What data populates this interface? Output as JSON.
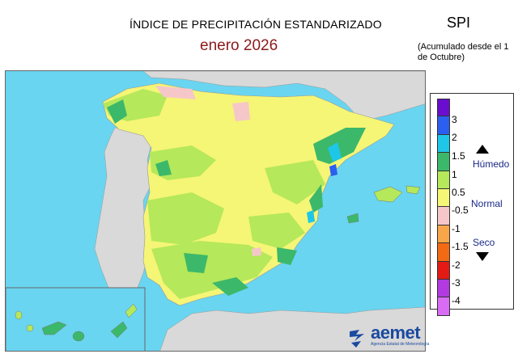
{
  "header": {
    "title": "ÍNDICE DE PRECIPITACIÓN ESTANDARIZADO",
    "period": "enero  2026",
    "index_name": "SPI",
    "note": "(Acumulado desde el 1 de Octubre)"
  },
  "legend": {
    "ticks": [
      "3",
      "2",
      "1.5",
      "1",
      "0.5",
      "-0.5",
      "-1",
      "-1.5",
      "-2",
      "-3",
      "-4"
    ],
    "bands": [
      {
        "color": "#6a0dcf"
      },
      {
        "color": "#2b5ff0"
      },
      {
        "color": "#1ec6e8"
      },
      {
        "color": "#3cb86a"
      },
      {
        "color": "#b5e85a"
      },
      {
        "color": "#f5f576"
      },
      {
        "color": "#f6c7c9"
      },
      {
        "color": "#f7a64a"
      },
      {
        "color": "#f26a13"
      },
      {
        "color": "#e31b14"
      },
      {
        "color": "#b13ae0"
      },
      {
        "color": "#d86cf5"
      }
    ],
    "labels": {
      "wet": "Húmedo",
      "normal": "Normal",
      "dry": "Seco"
    }
  },
  "colors": {
    "sea": "#69d5f0",
    "land_other": "#d9d9d9",
    "border": "#ffffff"
  },
  "logo": {
    "name": "aemet",
    "subtitle": "Agencia Estatal de Meteorología"
  }
}
